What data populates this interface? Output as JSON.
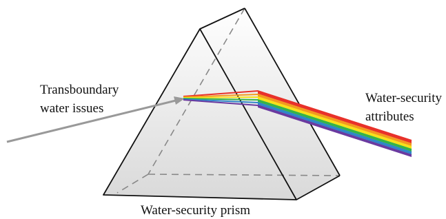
{
  "input_label": {
    "lines": [
      "Transboundary",
      "water issues"
    ]
  },
  "output_label": {
    "lines": [
      "Water-security",
      "attributes"
    ]
  },
  "prism_label": "Water-security prism"
}
